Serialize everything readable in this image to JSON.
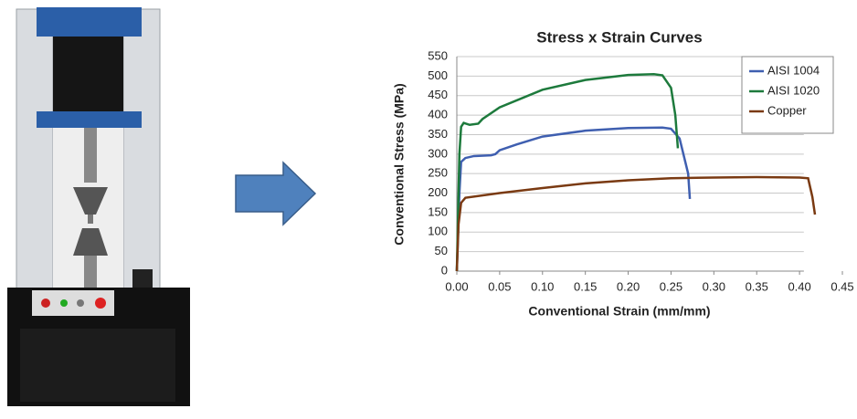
{
  "chart_data": {
    "type": "line",
    "title": "Stress x Strain Curves",
    "x_label": "Conventional Strain (mm/mm)",
    "y_label": "Conventional Stress (MPa)",
    "xlim": [
      0,
      0.45
    ],
    "ylim": [
      0,
      550
    ],
    "xticks": [
      {
        "value": 0,
        "label": "0.00"
      },
      {
        "value": 0.05,
        "label": "0.05"
      },
      {
        "value": 0.1,
        "label": "0.10"
      },
      {
        "value": 0.15,
        "label": "0.15"
      },
      {
        "value": 0.2,
        "label": "0.20"
      },
      {
        "value": 0.25,
        "label": "0.25"
      },
      {
        "value": 0.3,
        "label": "0.30"
      },
      {
        "value": 0.35,
        "label": "0.35"
      },
      {
        "value": 0.4,
        "label": "0.40"
      },
      {
        "value": 0.45,
        "label": "0.45"
      }
    ],
    "yticks": [
      0,
      50,
      100,
      150,
      200,
      250,
      300,
      350,
      400,
      450,
      500,
      550
    ],
    "grid": true,
    "legend": "top-right",
    "series": [
      {
        "name": "AISI 1004",
        "color": "#3f5fb0",
        "x": [
          0,
          0.003,
          0.005,
          0.01,
          0.02,
          0.04,
          0.045,
          0.05,
          0.07,
          0.1,
          0.15,
          0.2,
          0.24,
          0.25,
          0.26,
          0.27,
          0.272
        ],
        "values": [
          0,
          200,
          280,
          290,
          295,
          297,
          300,
          310,
          325,
          345,
          360,
          367,
          368,
          365,
          340,
          250,
          185
        ]
      },
      {
        "name": "AISI 1020",
        "color": "#1d7a3c",
        "x": [
          0,
          0.003,
          0.005,
          0.008,
          0.015,
          0.025,
          0.03,
          0.05,
          0.1,
          0.15,
          0.2,
          0.23,
          0.24,
          0.25,
          0.255,
          0.258
        ],
        "values": [
          0,
          300,
          370,
          380,
          375,
          378,
          390,
          420,
          465,
          490,
          503,
          505,
          502,
          470,
          400,
          315
        ]
      },
      {
        "name": "Copper",
        "color": "#7a3a12",
        "x": [
          0,
          0.002,
          0.005,
          0.01,
          0.05,
          0.1,
          0.15,
          0.2,
          0.25,
          0.3,
          0.35,
          0.4,
          0.41,
          0.415,
          0.418
        ],
        "values": [
          0,
          120,
          175,
          188,
          200,
          213,
          225,
          233,
          238,
          240,
          241,
          240,
          238,
          190,
          145
        ]
      }
    ]
  }
}
